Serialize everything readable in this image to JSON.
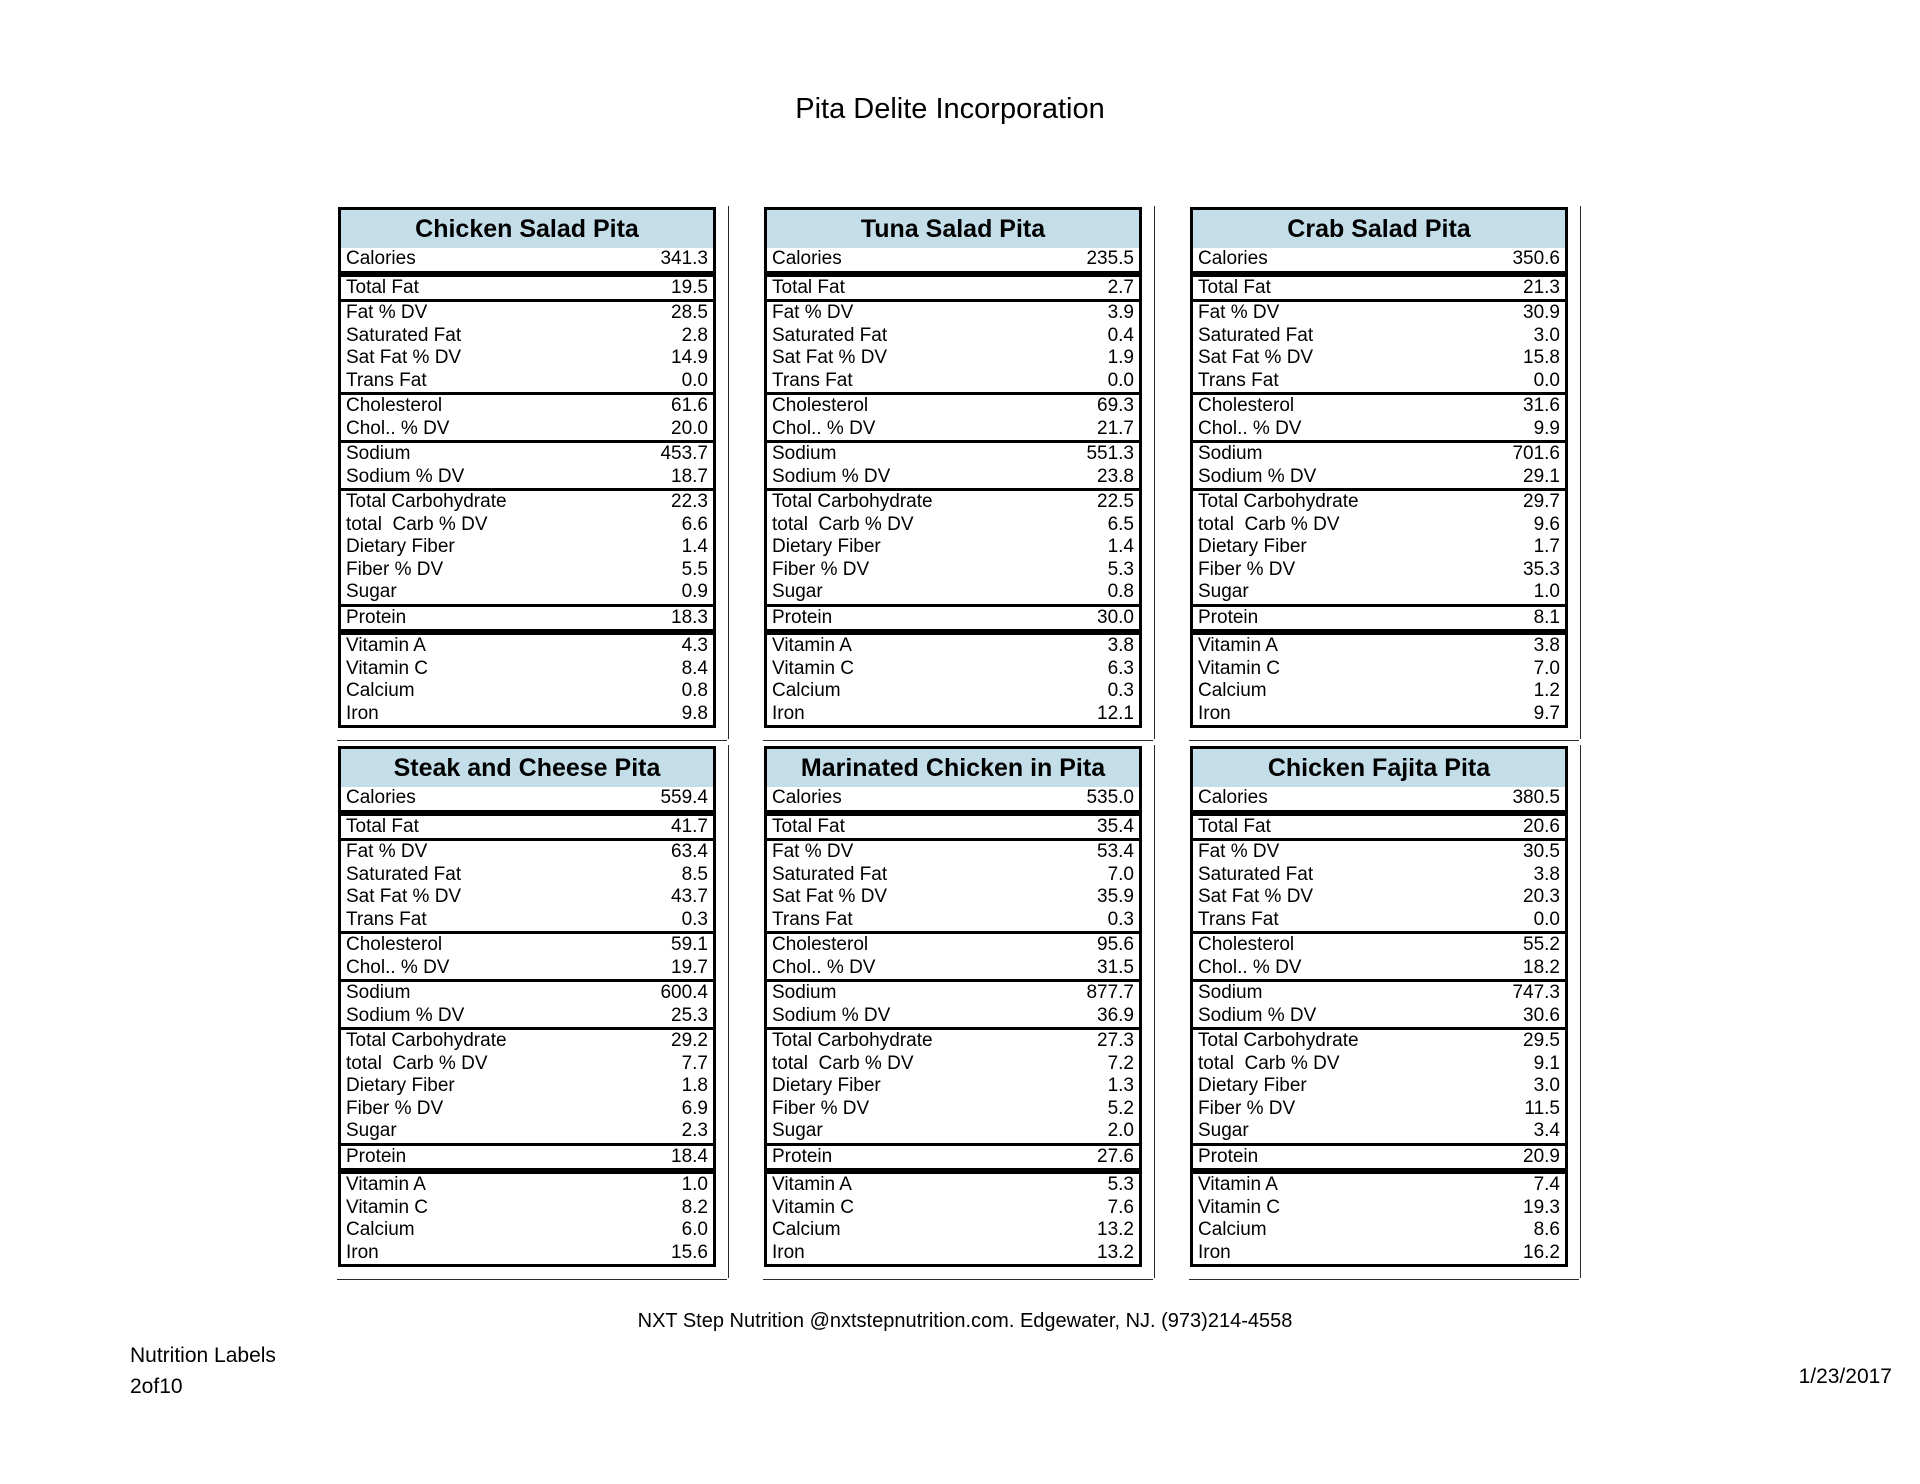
{
  "title": "Pita Delite Incorporation",
  "colors": {
    "table_header_bg": "#C3DEE9",
    "border": "#000000"
  },
  "row_labels": [
    "Calories",
    "Total Fat",
    "Fat % DV",
    "Saturated Fat",
    "Sat Fat % DV",
    "Trans Fat",
    "Cholesterol",
    "Chol.. % DV",
    "Sodium",
    "Sodium % DV",
    "Total Carbohydrate",
    "total  Carb % DV",
    "Dietary Fiber",
    "Fiber % DV",
    "Sugar",
    "Protein",
    "Vitamin A",
    "Vitamin C",
    "Calcium",
    "Iron"
  ],
  "tables": [
    {
      "name": "Chicken Salad Pita",
      "values": [
        "341.3",
        "19.5",
        "28.5",
        "2.8",
        "14.9",
        "0.0",
        "61.6",
        "20.0",
        "453.7",
        "18.7",
        "22.3",
        "6.6",
        "1.4",
        "5.5",
        "0.9",
        "18.3",
        "4.3",
        "8.4",
        "0.8",
        "9.8"
      ]
    },
    {
      "name": "Tuna Salad Pita",
      "values": [
        "235.5",
        "2.7",
        "3.9",
        "0.4",
        "1.9",
        "0.0",
        "69.3",
        "21.7",
        "551.3",
        "23.8",
        "22.5",
        "6.5",
        "1.4",
        "5.3",
        "0.8",
        "30.0",
        "3.8",
        "6.3",
        "0.3",
        "12.1"
      ]
    },
    {
      "name": "Crab Salad Pita",
      "values": [
        "350.6",
        "21.3",
        "30.9",
        "3.0",
        "15.8",
        "0.0",
        "31.6",
        "9.9",
        "701.6",
        "29.1",
        "29.7",
        "9.6",
        "1.7",
        "35.3",
        "1.0",
        "8.1",
        "3.8",
        "7.0",
        "1.2",
        "9.7"
      ]
    },
    {
      "name": "Steak and Cheese Pita",
      "values": [
        "559.4",
        "41.7",
        "63.4",
        "8.5",
        "43.7",
        "0.3",
        "59.1",
        "19.7",
        "600.4",
        "25.3",
        "29.2",
        "7.7",
        "1.8",
        "6.9",
        "2.3",
        "18.4",
        "1.0",
        "8.2",
        "6.0",
        "15.6"
      ]
    },
    {
      "name": "Marinated Chicken in Pita",
      "values": [
        "535.0",
        "35.4",
        "53.4",
        "7.0",
        "35.9",
        "0.3",
        "95.6",
        "31.5",
        "877.7",
        "36.9",
        "27.3",
        "7.2",
        "1.3",
        "5.2",
        "2.0",
        "27.6",
        "5.3",
        "7.6",
        "13.2",
        "13.2"
      ]
    },
    {
      "name": "Chicken Fajita Pita",
      "values": [
        "380.5",
        "20.6",
        "30.5",
        "3.8",
        "20.3",
        "0.0",
        "55.2",
        "18.2",
        "747.3",
        "30.6",
        "29.5",
        "9.1",
        "3.0",
        "11.5",
        "3.4",
        "20.9",
        "7.4",
        "19.3",
        "8.6",
        "16.2"
      ]
    }
  ],
  "footer": {
    "contact": "NXT Step Nutrition @nxtstepnutrition.com. Edgewater, NJ. (973)214-4558",
    "doc_label": "Nutrition Labels",
    "page": "2of10",
    "date": "1/23/2017"
  }
}
